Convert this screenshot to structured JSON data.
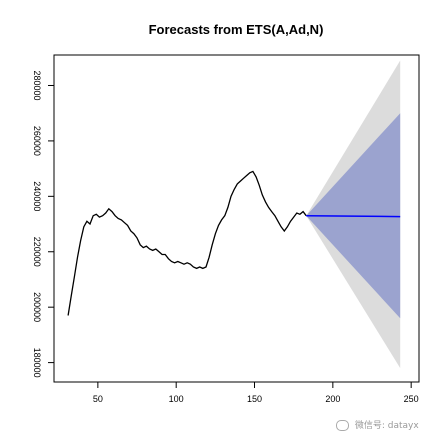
{
  "chart_data": {
    "type": "line",
    "title": "Forecasts from ETS(A,Ad,N)",
    "xlabel": "",
    "ylabel": "",
    "xlim": [
      22,
      255
    ],
    "ylim": [
      173000,
      291000
    ],
    "x_ticks": [
      50,
      100,
      150,
      200,
      250
    ],
    "y_ticks": [
      180000,
      200000,
      220000,
      240000,
      260000,
      280000
    ],
    "grid": false,
    "legend": "none",
    "y_tick_label_rotation": "rotated 90 degrees",
    "series": [
      {
        "role": "history",
        "color": "#000000",
        "points": [
          [
            31,
            197000
          ],
          [
            33,
            204000
          ],
          [
            35,
            211000
          ],
          [
            37,
            218000
          ],
          [
            39,
            224000
          ],
          [
            41,
            229000
          ],
          [
            43,
            231000
          ],
          [
            45,
            230000
          ],
          [
            47,
            233000
          ],
          [
            49,
            233500
          ],
          [
            51,
            232500
          ],
          [
            53,
            233000
          ],
          [
            55,
            234000
          ],
          [
            57,
            235500
          ],
          [
            59,
            234500
          ],
          [
            61,
            233000
          ],
          [
            63,
            232000
          ],
          [
            65,
            231500
          ],
          [
            67,
            230500
          ],
          [
            69,
            229500
          ],
          [
            71,
            227500
          ],
          [
            73,
            226500
          ],
          [
            75,
            225000
          ],
          [
            77,
            222500
          ],
          [
            79,
            221500
          ],
          [
            81,
            222000
          ],
          [
            83,
            221000
          ],
          [
            85,
            220500
          ],
          [
            87,
            221000
          ],
          [
            89,
            220000
          ],
          [
            91,
            219000
          ],
          [
            93,
            219000
          ],
          [
            95,
            217500
          ],
          [
            97,
            216500
          ],
          [
            99,
            216000
          ],
          [
            101,
            216500
          ],
          [
            103,
            216000
          ],
          [
            105,
            215500
          ],
          [
            107,
            216000
          ],
          [
            109,
            215500
          ],
          [
            111,
            214500
          ],
          [
            113,
            214000
          ],
          [
            115,
            214500
          ],
          [
            117,
            214000
          ],
          [
            119,
            214500
          ],
          [
            121,
            218000
          ],
          [
            123,
            222500
          ],
          [
            125,
            226500
          ],
          [
            127,
            229500
          ],
          [
            129,
            231500
          ],
          [
            131,
            233000
          ],
          [
            133,
            236000
          ],
          [
            135,
            240000
          ],
          [
            137,
            242500
          ],
          [
            139,
            244500
          ],
          [
            141,
            245500
          ],
          [
            143,
            246500
          ],
          [
            145,
            247500
          ],
          [
            147,
            248500
          ],
          [
            149,
            249000
          ],
          [
            151,
            247000
          ],
          [
            153,
            244000
          ],
          [
            155,
            240500
          ],
          [
            157,
            238000
          ],
          [
            159,
            236000
          ],
          [
            161,
            234500
          ],
          [
            163,
            233000
          ],
          [
            165,
            231000
          ],
          [
            167,
            229000
          ],
          [
            169,
            227500
          ],
          [
            171,
            229000
          ],
          [
            173,
            231000
          ],
          [
            175,
            232500
          ],
          [
            177,
            234000
          ],
          [
            179,
            233500
          ],
          [
            181,
            234500
          ],
          [
            183,
            233000
          ]
        ]
      },
      {
        "role": "point-forecast",
        "color": "#0000ff",
        "points": [
          [
            183,
            233000
          ],
          [
            243,
            232700
          ]
        ]
      }
    ],
    "forecast_bands": [
      {
        "level": "95%",
        "color": "#dcdcdc",
        "start": [
          183,
          233000
        ],
        "end_x": 243,
        "end_lower": 178000,
        "end_upper": 289000
      },
      {
        "level": "80%",
        "color": "#9ba3cf",
        "start": [
          183,
          233000
        ],
        "end_x": 243,
        "end_lower": 196000,
        "end_upper": 270000
      }
    ]
  },
  "watermark": {
    "text": "微信号: datayx"
  }
}
